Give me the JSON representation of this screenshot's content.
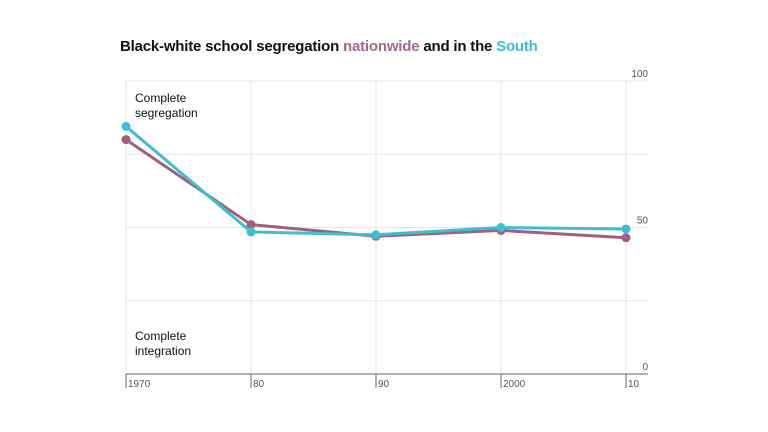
{
  "chart_data": {
    "type": "line",
    "title": {
      "prefix": "Black-white school segregation ",
      "series1_word": "nationwide",
      "middle": " and in the ",
      "series2_word": "South"
    },
    "x": [
      1970,
      1980,
      1990,
      2000,
      2010
    ],
    "x_tick_labels": [
      "1970",
      "80",
      "90",
      "2000",
      "10"
    ],
    "y_ticks": [
      0,
      50,
      100
    ],
    "y_tick_labels": [
      "0",
      "50",
      "100"
    ],
    "ylim": [
      0,
      100
    ],
    "grid": true,
    "y_axis_side": "right",
    "annotations": {
      "top": [
        "Complete",
        "segregation"
      ],
      "bottom": [
        "Complete",
        "integration"
      ]
    },
    "series": [
      {
        "name": "nationwide",
        "color": "#9e5f80",
        "values": [
          80,
          51,
          47,
          49,
          46.5
        ]
      },
      {
        "name": "South",
        "color": "#3cbfd0",
        "values": [
          84.5,
          48.5,
          47.5,
          50,
          49.5
        ]
      }
    ]
  }
}
